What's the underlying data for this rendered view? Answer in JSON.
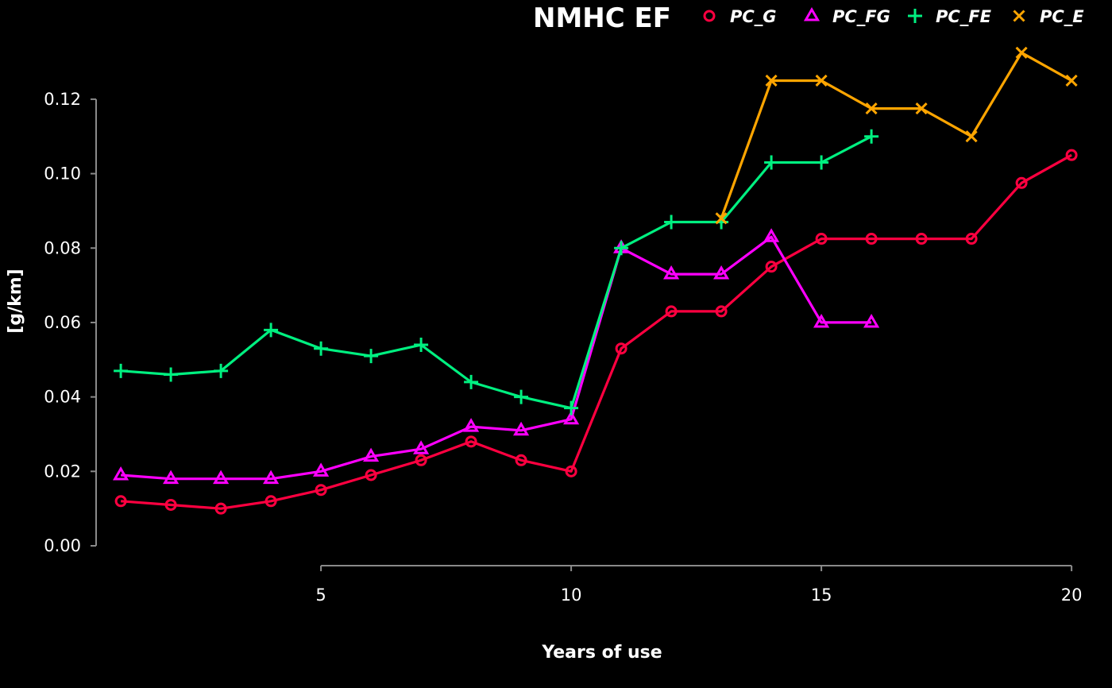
{
  "chart_data": {
    "type": "line",
    "title": "NMHC EF",
    "xlabel": "Years of use",
    "ylabel": "[g/km]",
    "xlim": [
      0.3,
      20.3
    ],
    "ylim": [
      0,
      0.133
    ],
    "x_ticks": [
      5,
      10,
      15,
      20
    ],
    "y_ticks": [
      0.0,
      0.02,
      0.04,
      0.06,
      0.08,
      0.1,
      0.12
    ],
    "y_tick_labels": [
      "0.00",
      "0.02",
      "0.04",
      "0.06",
      "0.08",
      "0.10",
      "0.12"
    ],
    "x_tick_labels": [
      "5",
      "10",
      "15",
      "20"
    ],
    "grid": false,
    "legend_position": "top-right",
    "series": [
      {
        "name": "PC_G",
        "color": "#ff0040",
        "marker": "circle",
        "x": [
          1,
          2,
          3,
          4,
          5,
          6,
          7,
          8,
          9,
          10,
          11,
          12,
          13,
          14,
          15,
          16,
          17,
          18,
          19,
          20
        ],
        "y": [
          0.012,
          0.011,
          0.01,
          0.012,
          0.015,
          0.019,
          0.023,
          0.028,
          0.023,
          0.02,
          0.053,
          0.063,
          0.063,
          0.075,
          0.0825,
          0.0825,
          0.0825,
          0.0825,
          0.0975,
          0.105
        ]
      },
      {
        "name": "PC_FG",
        "color": "#ff00ff",
        "marker": "triangle",
        "x": [
          1,
          2,
          3,
          4,
          5,
          6,
          7,
          8,
          9,
          10,
          11,
          12,
          13,
          14,
          15,
          16
        ],
        "y": [
          0.019,
          0.018,
          0.018,
          0.018,
          0.02,
          0.024,
          0.026,
          0.032,
          0.031,
          0.034,
          0.08,
          0.073,
          0.073,
          0.083,
          0.06,
          0.06
        ]
      },
      {
        "name": "PC_FE",
        "color": "#00f080",
        "marker": "plus",
        "x": [
          1,
          2,
          3,
          4,
          5,
          6,
          7,
          8,
          9,
          10,
          11,
          12,
          13,
          14,
          15,
          16
        ],
        "y": [
          0.047,
          0.046,
          0.047,
          0.058,
          0.053,
          0.051,
          0.054,
          0.044,
          0.04,
          0.037,
          0.08,
          0.087,
          0.087,
          0.103,
          0.103,
          0.11
        ]
      },
      {
        "name": "PC_E",
        "color": "#ffa500",
        "marker": "x",
        "x": [
          13,
          14,
          15,
          16,
          17,
          18,
          19,
          20
        ],
        "y": [
          0.088,
          0.125,
          0.125,
          0.1175,
          0.1175,
          0.11,
          0.1325,
          0.125
        ]
      }
    ]
  }
}
